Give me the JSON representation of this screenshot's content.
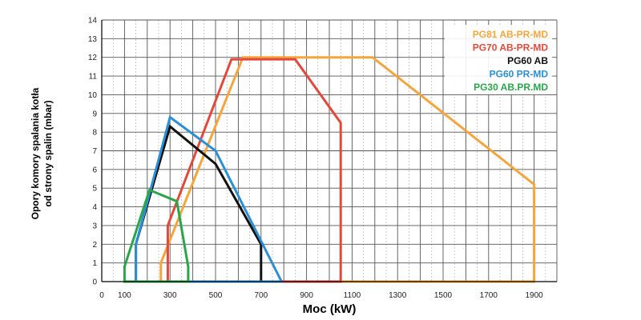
{
  "chart_data": {
    "type": "line",
    "xlabel": "Moc (kW)",
    "ylabel_lines": [
      "Opory komory spalania kotła",
      "od strony spalin (mbar)"
    ],
    "xlim": [
      0,
      2000
    ],
    "ylim": [
      0,
      14
    ],
    "x_ticks": [
      0,
      100,
      300,
      500,
      700,
      900,
      1100,
      1300,
      1500,
      1700,
      1900
    ],
    "y_ticks": [
      0,
      1,
      2,
      3,
      4,
      5,
      6,
      7,
      8,
      9,
      10,
      11,
      12,
      13,
      14
    ],
    "grid": true,
    "grid_minor_x": true,
    "legend": "top-right",
    "series": [
      {
        "name": "PG81 AB-PR-MD",
        "color": "#f5a53b",
        "points": [
          [
            260,
            0
          ],
          [
            260,
            1
          ],
          [
            620,
            12
          ],
          [
            1190,
            12
          ],
          [
            1900,
            5.2
          ],
          [
            1900,
            0
          ],
          [
            260,
            0
          ]
        ]
      },
      {
        "name": "PG70 AB-PR-MD",
        "color": "#e2493a",
        "points": [
          [
            290,
            0
          ],
          [
            290,
            3
          ],
          [
            570,
            11.9
          ],
          [
            850,
            11.9
          ],
          [
            1050,
            8.5
          ],
          [
            1050,
            0
          ],
          [
            290,
            0
          ]
        ]
      },
      {
        "name": "PG60 AB",
        "color": "#111111",
        "points": [
          [
            150,
            0
          ],
          [
            150,
            2
          ],
          [
            300,
            8.3
          ],
          [
            500,
            6.3
          ],
          [
            700,
            2
          ],
          [
            700,
            0
          ],
          [
            150,
            0
          ]
        ]
      },
      {
        "name": "PG60 PR-MD",
        "color": "#2b8fd6",
        "points": [
          [
            150,
            0
          ],
          [
            150,
            2
          ],
          [
            300,
            8.8
          ],
          [
            500,
            7
          ],
          [
            790,
            0
          ],
          [
            150,
            0
          ]
        ]
      },
      {
        "name": "PG30 AB.PR.MD",
        "color": "#2aa54a",
        "points": [
          [
            100,
            0
          ],
          [
            100,
            0.8
          ],
          [
            210,
            4.9
          ],
          [
            330,
            4.3
          ],
          [
            380,
            0.8
          ],
          [
            380,
            0
          ],
          [
            100,
            0
          ]
        ]
      }
    ]
  }
}
